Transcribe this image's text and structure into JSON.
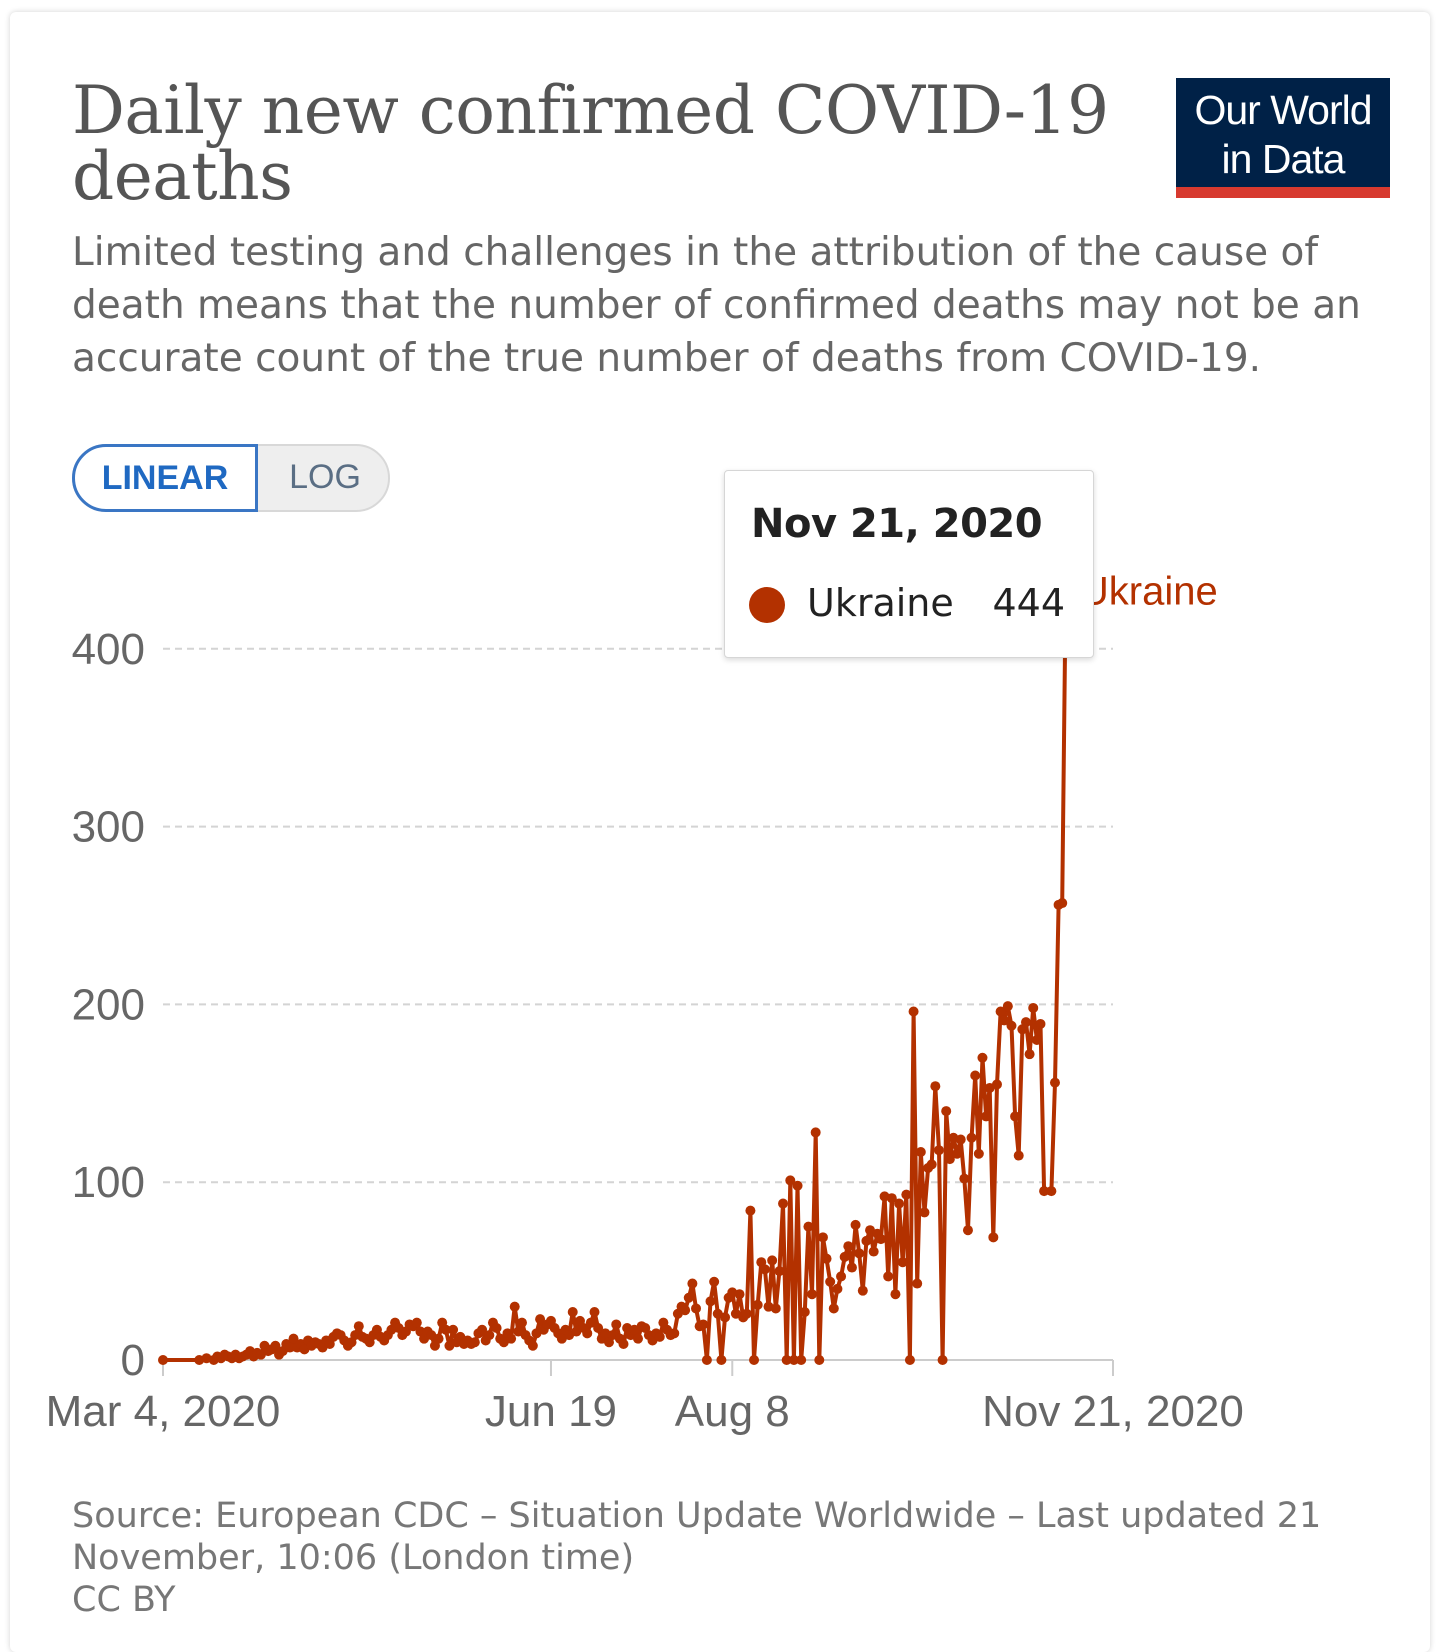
{
  "header": {
    "title": "Daily new confirmed COVID-19 deaths",
    "subtitle": "Limited testing and challenges in the attribution of the cause of death means that the number of confirmed deaths may not be an accurate count of the true number of deaths from COVID-19.",
    "logo_line1": "Our World",
    "logo_line2": "in Data"
  },
  "controls": {
    "linear_label": "LINEAR",
    "log_label": "LOG",
    "selected": "LINEAR"
  },
  "tooltip": {
    "date": "Nov 21, 2020",
    "series": "Ukraine",
    "value": "444"
  },
  "footer": {
    "source": "Source: European CDC – Situation Update Worldwide – Last updated 21 November, 10:06 (London time)",
    "license": "CC BY"
  },
  "colors": {
    "series": "#b33100",
    "logo_bg": "#002147",
    "logo_bar": "#d73a2f",
    "toggle_active": "#1f69c2"
  },
  "chart_data": {
    "type": "line",
    "title": "Daily new confirmed COVID-19 deaths",
    "xlabel": "",
    "ylabel": "",
    "x_start": "2020-03-04",
    "x_end": "2020-11-21",
    "x_ticks": [
      "Mar 4, 2020",
      "Jun 19",
      "Aug 8",
      "Nov 21, 2020"
    ],
    "x_tick_positions": [
      "2020-03-04",
      "2020-06-19",
      "2020-08-08",
      "2020-11-21"
    ],
    "y_ticks": [
      0,
      100,
      200,
      300,
      400
    ],
    "ylim": [
      0,
      444
    ],
    "grid": "horizontal dashed",
    "series": [
      {
        "name": "Ukraine",
        "color": "#b33100",
        "end_label": "Ukraine",
        "points": [
          [
            "2020-03-04",
            0
          ],
          [
            "2020-03-14",
            0
          ],
          [
            "2020-03-16",
            1
          ],
          [
            "2020-03-18",
            0
          ],
          [
            "2020-03-19",
            2
          ],
          [
            "2020-03-20",
            1
          ],
          [
            "2020-03-21",
            3
          ],
          [
            "2020-03-22",
            2
          ],
          [
            "2020-03-23",
            1
          ],
          [
            "2020-03-24",
            3
          ],
          [
            "2020-03-25",
            1
          ],
          [
            "2020-03-26",
            2
          ],
          [
            "2020-03-27",
            3
          ],
          [
            "2020-03-28",
            5
          ],
          [
            "2020-03-29",
            2
          ],
          [
            "2020-03-30",
            4
          ],
          [
            "2020-03-31",
            3
          ],
          [
            "2020-04-01",
            8
          ],
          [
            "2020-04-02",
            5
          ],
          [
            "2020-04-03",
            6
          ],
          [
            "2020-04-04",
            8
          ],
          [
            "2020-04-05",
            3
          ],
          [
            "2020-04-06",
            5
          ],
          [
            "2020-04-07",
            9
          ],
          [
            "2020-04-08",
            7
          ],
          [
            "2020-04-09",
            12
          ],
          [
            "2020-04-10",
            7
          ],
          [
            "2020-04-11",
            9
          ],
          [
            "2020-04-12",
            6
          ],
          [
            "2020-04-13",
            11
          ],
          [
            "2020-04-14",
            8
          ],
          [
            "2020-04-15",
            10
          ],
          [
            "2020-04-16",
            9
          ],
          [
            "2020-04-17",
            7
          ],
          [
            "2020-04-18",
            11
          ],
          [
            "2020-04-19",
            9
          ],
          [
            "2020-04-20",
            13
          ],
          [
            "2020-04-21",
            15
          ],
          [
            "2020-04-22",
            14
          ],
          [
            "2020-04-23",
            11
          ],
          [
            "2020-04-24",
            8
          ],
          [
            "2020-04-25",
            10
          ],
          [
            "2020-04-26",
            14
          ],
          [
            "2020-04-27",
            19
          ],
          [
            "2020-04-28",
            13
          ],
          [
            "2020-04-29",
            12
          ],
          [
            "2020-04-30",
            10
          ],
          [
            "2020-05-01",
            14
          ],
          [
            "2020-05-02",
            17
          ],
          [
            "2020-05-03",
            13
          ],
          [
            "2020-05-04",
            11
          ],
          [
            "2020-05-05",
            14
          ],
          [
            "2020-05-06",
            17
          ],
          [
            "2020-05-07",
            21
          ],
          [
            "2020-05-08",
            18
          ],
          [
            "2020-05-09",
            14
          ],
          [
            "2020-05-10",
            16
          ],
          [
            "2020-05-11",
            20
          ],
          [
            "2020-05-12",
            19
          ],
          [
            "2020-05-13",
            21
          ],
          [
            "2020-05-14",
            16
          ],
          [
            "2020-05-15",
            12
          ],
          [
            "2020-05-16",
            16
          ],
          [
            "2020-05-17",
            14
          ],
          [
            "2020-05-18",
            8
          ],
          [
            "2020-05-19",
            12
          ],
          [
            "2020-05-20",
            21
          ],
          [
            "2020-05-21",
            17
          ],
          [
            "2020-05-22",
            8
          ],
          [
            "2020-05-23",
            17
          ],
          [
            "2020-05-24",
            10
          ],
          [
            "2020-05-25",
            13
          ],
          [
            "2020-05-26",
            9
          ],
          [
            "2020-05-27",
            11
          ],
          [
            "2020-05-28",
            9
          ],
          [
            "2020-05-29",
            10
          ],
          [
            "2020-05-30",
            15
          ],
          [
            "2020-05-31",
            17
          ],
          [
            "2020-06-01",
            11
          ],
          [
            "2020-06-02",
            14
          ],
          [
            "2020-06-03",
            21
          ],
          [
            "2020-06-04",
            18
          ],
          [
            "2020-06-05",
            12
          ],
          [
            "2020-06-06",
            10
          ],
          [
            "2020-06-07",
            15
          ],
          [
            "2020-06-08",
            12
          ],
          [
            "2020-06-09",
            30
          ],
          [
            "2020-06-10",
            16
          ],
          [
            "2020-06-11",
            21
          ],
          [
            "2020-06-12",
            14
          ],
          [
            "2020-06-13",
            11
          ],
          [
            "2020-06-14",
            8
          ],
          [
            "2020-06-15",
            15
          ],
          [
            "2020-06-16",
            23
          ],
          [
            "2020-06-17",
            17
          ],
          [
            "2020-06-18",
            20
          ],
          [
            "2020-06-19",
            22
          ],
          [
            "2020-06-20",
            18
          ],
          [
            "2020-06-21",
            15
          ],
          [
            "2020-06-22",
            12
          ],
          [
            "2020-06-23",
            17
          ],
          [
            "2020-06-24",
            14
          ],
          [
            "2020-06-25",
            27
          ],
          [
            "2020-06-26",
            16
          ],
          [
            "2020-06-27",
            22
          ],
          [
            "2020-06-28",
            18
          ],
          [
            "2020-06-29",
            15
          ],
          [
            "2020-06-30",
            21
          ],
          [
            "2020-07-01",
            27
          ],
          [
            "2020-07-02",
            18
          ],
          [
            "2020-07-03",
            12
          ],
          [
            "2020-07-04",
            15
          ],
          [
            "2020-07-05",
            10
          ],
          [
            "2020-07-06",
            14
          ],
          [
            "2020-07-07",
            20
          ],
          [
            "2020-07-08",
            12
          ],
          [
            "2020-07-09",
            9
          ],
          [
            "2020-07-10",
            18
          ],
          [
            "2020-07-11",
            14
          ],
          [
            "2020-07-12",
            17
          ],
          [
            "2020-07-13",
            12
          ],
          [
            "2020-07-14",
            19
          ],
          [
            "2020-07-15",
            18
          ],
          [
            "2020-07-16",
            14
          ],
          [
            "2020-07-17",
            11
          ],
          [
            "2020-07-18",
            15
          ],
          [
            "2020-07-19",
            13
          ],
          [
            "2020-07-20",
            21
          ],
          [
            "2020-07-21",
            17
          ],
          [
            "2020-07-22",
            14
          ],
          [
            "2020-07-23",
            15
          ],
          [
            "2020-07-24",
            26
          ],
          [
            "2020-07-25",
            30
          ],
          [
            "2020-07-26",
            28
          ],
          [
            "2020-07-27",
            35
          ],
          [
            "2020-07-28",
            43
          ],
          [
            "2020-07-29",
            29
          ],
          [
            "2020-07-30",
            19
          ],
          [
            "2020-07-31",
            20
          ],
          [
            "2020-08-01",
            0
          ],
          [
            "2020-08-02",
            33
          ],
          [
            "2020-08-03",
            44
          ],
          [
            "2020-08-04",
            26
          ],
          [
            "2020-08-05",
            0
          ],
          [
            "2020-08-06",
            24
          ],
          [
            "2020-08-07",
            35
          ],
          [
            "2020-08-08",
            38
          ],
          [
            "2020-08-09",
            26
          ],
          [
            "2020-08-10",
            37
          ],
          [
            "2020-08-11",
            24
          ],
          [
            "2020-08-12",
            26
          ],
          [
            "2020-08-13",
            84
          ],
          [
            "2020-08-14",
            0
          ],
          [
            "2020-08-15",
            31
          ],
          [
            "2020-08-16",
            55
          ],
          [
            "2020-08-17",
            51
          ],
          [
            "2020-08-18",
            30
          ],
          [
            "2020-08-19",
            56
          ],
          [
            "2020-08-20",
            29
          ],
          [
            "2020-08-21",
            50
          ],
          [
            "2020-08-22",
            88
          ],
          [
            "2020-08-23",
            0
          ],
          [
            "2020-08-24",
            101
          ],
          [
            "2020-08-25",
            0
          ],
          [
            "2020-08-26",
            98
          ],
          [
            "2020-08-27",
            0
          ],
          [
            "2020-08-28",
            27
          ],
          [
            "2020-08-29",
            75
          ],
          [
            "2020-08-30",
            37
          ],
          [
            "2020-08-31",
            128
          ],
          [
            "2020-09-01",
            0
          ],
          [
            "2020-09-02",
            69
          ],
          [
            "2020-09-03",
            57
          ],
          [
            "2020-09-04",
            44
          ],
          [
            "2020-09-05",
            29
          ],
          [
            "2020-09-06",
            40
          ],
          [
            "2020-09-07",
            47
          ],
          [
            "2020-09-08",
            58
          ],
          [
            "2020-09-09",
            64
          ],
          [
            "2020-09-10",
            52
          ],
          [
            "2020-09-11",
            76
          ],
          [
            "2020-09-12",
            60
          ],
          [
            "2020-09-13",
            39
          ],
          [
            "2020-09-14",
            67
          ],
          [
            "2020-09-15",
            73
          ],
          [
            "2020-09-16",
            61
          ],
          [
            "2020-09-17",
            71
          ],
          [
            "2020-09-18",
            68
          ],
          [
            "2020-09-19",
            92
          ],
          [
            "2020-09-20",
            47
          ],
          [
            "2020-09-21",
            91
          ],
          [
            "2020-09-22",
            37
          ],
          [
            "2020-09-23",
            88
          ],
          [
            "2020-09-24",
            55
          ],
          [
            "2020-09-25",
            93
          ],
          [
            "2020-09-26",
            0
          ],
          [
            "2020-09-27",
            196
          ],
          [
            "2020-09-28",
            43
          ],
          [
            "2020-09-29",
            117
          ],
          [
            "2020-09-30",
            83
          ],
          [
            "2020-10-01",
            108
          ],
          [
            "2020-10-02",
            110
          ],
          [
            "2020-10-03",
            154
          ],
          [
            "2020-10-04",
            118
          ],
          [
            "2020-10-05",
            0
          ],
          [
            "2020-10-06",
            140
          ],
          [
            "2020-10-07",
            113
          ],
          [
            "2020-10-08",
            125
          ],
          [
            "2020-10-09",
            116
          ],
          [
            "2020-10-10",
            124
          ],
          [
            "2020-10-11",
            102
          ],
          [
            "2020-10-12",
            73
          ],
          [
            "2020-10-13",
            125
          ],
          [
            "2020-10-14",
            160
          ],
          [
            "2020-10-15",
            116
          ],
          [
            "2020-10-16",
            170
          ],
          [
            "2020-10-17",
            137
          ],
          [
            "2020-10-18",
            153
          ],
          [
            "2020-10-19",
            69
          ],
          [
            "2020-10-20",
            155
          ],
          [
            "2020-10-21",
            196
          ],
          [
            "2020-10-22",
            191
          ],
          [
            "2020-10-23",
            199
          ],
          [
            "2020-10-24",
            188
          ],
          [
            "2020-10-25",
            137
          ],
          [
            "2020-10-26",
            115
          ],
          [
            "2020-10-27",
            186
          ],
          [
            "2020-10-28",
            190
          ],
          [
            "2020-10-29",
            172
          ],
          [
            "2020-10-30",
            198
          ],
          [
            "2020-10-31",
            180
          ],
          [
            "2020-11-01",
            189
          ],
          [
            "2020-11-02",
            95
          ],
          [
            "2020-11-04",
            95
          ],
          [
            "2020-11-05",
            156
          ],
          [
            "2020-11-06",
            256
          ],
          [
            "2020-11-07",
            257
          ],
          [
            "2020-11-08",
            444
          ]
        ]
      }
    ]
  }
}
